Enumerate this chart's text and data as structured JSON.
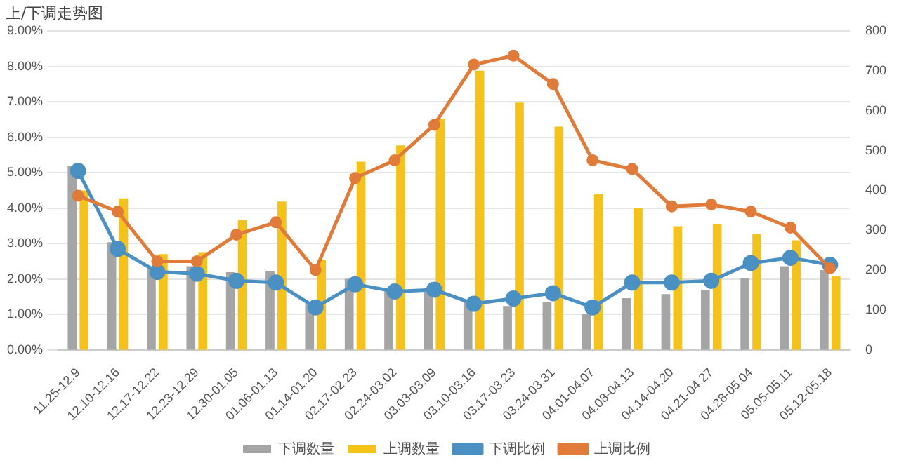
{
  "chart_data": {
    "type": "bar",
    "title": "上/下调走势图",
    "categories": [
      "11.25-12.9",
      "12.10-12.16",
      "12.17-12.22",
      "12.23-12.29",
      "12.30-01.05",
      "01.06-01.13",
      "01.14-01.20",
      "02.17-02.23",
      "02.24-03.02",
      "03.03-03.09",
      "03.10-03.16",
      "03.17-03.23",
      "03.24-03.31",
      "04.01-04.07",
      "04.08-04.13",
      "04.14-04.20",
      "04.21-04.27",
      "04.28-05.04",
      "05.05-05.11",
      "05.12-05.18"
    ],
    "series": [
      {
        "name": "下调数量",
        "axis": "y2",
        "color": "#a5a5a5",
        "values": [
          462,
          270,
          205,
          210,
          195,
          198,
          118,
          178,
          150,
          155,
          120,
          110,
          120,
          90,
          130,
          140,
          150,
          180,
          210,
          200
        ]
      },
      {
        "name": "上调数量",
        "axis": "y2",
        "color": "#f5c21b",
        "values": [
          400,
          380,
          240,
          245,
          325,
          372,
          225,
          472,
          513,
          580,
          700,
          620,
          560,
          390,
          355,
          310,
          315,
          290,
          275,
          185
        ]
      },
      {
        "name": "下调比例",
        "type": "line",
        "axis": "y",
        "color": "#4a90c2",
        "marker": "circle",
        "values": [
          5.05,
          2.85,
          2.2,
          2.15,
          1.95,
          1.9,
          1.2,
          1.85,
          1.65,
          1.7,
          1.3,
          1.45,
          1.6,
          1.2,
          1.9,
          1.9,
          1.95,
          2.45,
          2.6,
          2.4
        ]
      },
      {
        "name": "上调比例",
        "type": "line",
        "axis": "y",
        "color": "#e07b39",
        "marker": "circle",
        "values": [
          4.35,
          3.9,
          2.5,
          2.5,
          3.25,
          3.6,
          2.25,
          4.85,
          5.35,
          6.35,
          8.05,
          8.3,
          7.5,
          5.35,
          5.1,
          4.05,
          4.1,
          3.9,
          3.45,
          2.3
        ]
      }
    ],
    "ylim": [
      0,
      9
    ],
    "yticks": [
      {
        "value": 0,
        "label": "0.00%"
      },
      {
        "value": 1,
        "label": "1.00%"
      },
      {
        "value": 2,
        "label": "2.00%"
      },
      {
        "value": 3,
        "label": "3.00%"
      },
      {
        "value": 4,
        "label": "4.00%"
      },
      {
        "value": 5,
        "label": "5.00%"
      },
      {
        "value": 6,
        "label": "6.00%"
      },
      {
        "value": 7,
        "label": "7.00%"
      },
      {
        "value": 8,
        "label": "8.00%"
      },
      {
        "value": 9,
        "label": "9.00%"
      }
    ],
    "y2lim": [
      0,
      800
    ],
    "y2ticks": [
      0,
      100,
      200,
      300,
      400,
      500,
      600,
      700,
      800
    ],
    "grid": "y",
    "legend": "bottom",
    "line_style": "solid"
  }
}
